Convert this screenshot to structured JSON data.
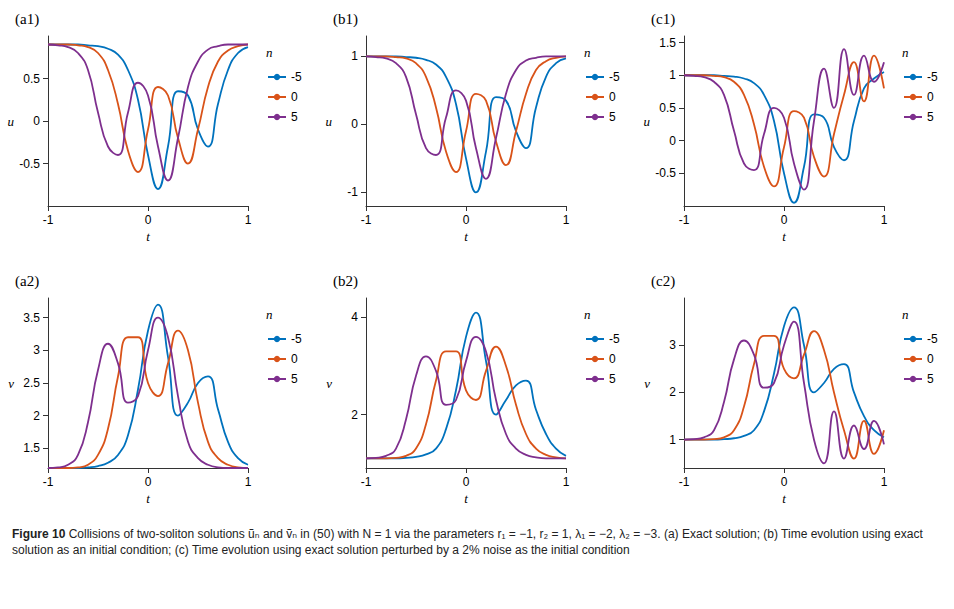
{
  "chart_data": [
    {
      "type": "line",
      "title": "(a1)",
      "xlabel": "t",
      "ylabel": "u",
      "legend_title": "n",
      "legend": "right",
      "x": [
        -1,
        -0.9,
        -0.8,
        -0.7,
        -0.6,
        -0.5,
        -0.4,
        -0.3,
        -0.2,
        -0.1,
        0,
        0.1,
        0.2,
        0.3,
        0.4,
        0.5,
        0.6,
        0.7,
        0.8,
        0.9,
        1
      ],
      "xlim": [
        -1,
        1
      ],
      "xticks": [
        -1,
        0,
        1
      ],
      "ylim": [
        -1,
        1
      ],
      "yticks": [
        -0.5,
        0,
        0.5
      ],
      "grid": false,
      "series": [
        {
          "name": "-5",
          "color": "#0072bd",
          "values": [
            0.9,
            0.9,
            0.9,
            0.9,
            0.89,
            0.88,
            0.85,
            0.78,
            0.6,
            0.25,
            -0.4,
            -0.8,
            -0.3,
            0.35,
            0.3,
            -0.1,
            -0.3,
            0.2,
            0.6,
            0.8,
            0.87
          ]
        },
        {
          "name": "0",
          "color": "#d95319",
          "values": [
            0.9,
            0.9,
            0.9,
            0.89,
            0.87,
            0.8,
            0.6,
            0.2,
            -0.35,
            -0.6,
            -0.1,
            0.4,
            0.3,
            -0.2,
            -0.5,
            -0.1,
            0.4,
            0.7,
            0.83,
            0.88,
            0.9
          ]
        },
        {
          "name": "5",
          "color": "#7e2f8e",
          "values": [
            0.9,
            0.89,
            0.87,
            0.8,
            0.6,
            0.1,
            -0.3,
            -0.4,
            0.1,
            0.45,
            0.3,
            -0.3,
            -0.7,
            -0.2,
            0.4,
            0.7,
            0.84,
            0.88,
            0.9,
            0.9,
            0.9
          ]
        }
      ]
    },
    {
      "type": "line",
      "title": "(b1)",
      "xlabel": "t",
      "ylabel": "u",
      "legend_title": "n",
      "legend": "right",
      "x": [
        -1,
        -0.9,
        -0.8,
        -0.7,
        -0.6,
        -0.5,
        -0.4,
        -0.3,
        -0.2,
        -0.1,
        0,
        0.1,
        0.2,
        0.3,
        0.4,
        0.5,
        0.6,
        0.7,
        0.8,
        0.9,
        1
      ],
      "xlim": [
        -1,
        1
      ],
      "xticks": [
        -1,
        0,
        1
      ],
      "ylim": [
        -1.2,
        1.3
      ],
      "yticks": [
        -1,
        0,
        1
      ],
      "grid": false,
      "series": [
        {
          "name": "-5",
          "color": "#0072bd",
          "values": [
            1,
            1,
            1,
            1,
            0.99,
            0.98,
            0.95,
            0.88,
            0.7,
            0.3,
            -0.5,
            -1.0,
            -0.4,
            0.4,
            0.35,
            -0.1,
            -0.35,
            0.25,
            0.7,
            0.9,
            0.97
          ]
        },
        {
          "name": "0",
          "color": "#d95319",
          "values": [
            1,
            1,
            1,
            0.99,
            0.97,
            0.9,
            0.7,
            0.25,
            -0.4,
            -0.7,
            -0.1,
            0.45,
            0.35,
            -0.25,
            -0.6,
            -0.1,
            0.45,
            0.8,
            0.93,
            0.98,
            1
          ]
        },
        {
          "name": "5",
          "color": "#7e2f8e",
          "values": [
            1,
            0.99,
            0.97,
            0.9,
            0.7,
            0.15,
            -0.35,
            -0.45,
            0.1,
            0.5,
            0.35,
            -0.35,
            -0.8,
            -0.2,
            0.45,
            0.8,
            0.94,
            0.98,
            1,
            1,
            1
          ]
        }
      ]
    },
    {
      "type": "line",
      "title": "(c1)",
      "xlabel": "t",
      "ylabel": "u",
      "legend_title": "n",
      "legend": "right",
      "x": [
        -1,
        -0.9,
        -0.8,
        -0.7,
        -0.6,
        -0.5,
        -0.4,
        -0.3,
        -0.2,
        -0.1,
        0,
        0.1,
        0.2,
        0.3,
        0.4,
        0.5,
        0.6,
        0.7,
        0.8,
        0.9,
        1
      ],
      "xlim": [
        -1,
        1
      ],
      "xticks": [
        -1,
        0,
        1
      ],
      "ylim": [
        -1,
        1.6
      ],
      "yticks": [
        -0.5,
        0,
        0.5,
        1,
        1.5
      ],
      "grid": false,
      "series": [
        {
          "name": "-5",
          "color": "#0072bd",
          "values": [
            1,
            1,
            1,
            1,
            0.99,
            0.98,
            0.95,
            0.88,
            0.7,
            0.3,
            -0.5,
            -0.95,
            -0.4,
            0.4,
            0.35,
            -0.1,
            -0.3,
            0.3,
            0.8,
            0.95,
            1.05
          ]
        },
        {
          "name": "0",
          "color": "#d95319",
          "values": [
            1,
            1,
            1,
            0.99,
            0.97,
            0.9,
            0.7,
            0.25,
            -0.4,
            -0.7,
            -0.1,
            0.45,
            0.35,
            -0.25,
            -0.55,
            0.1,
            0.7,
            1.2,
            0.6,
            1.3,
            0.8
          ]
        },
        {
          "name": "5",
          "color": "#7e2f8e",
          "values": [
            1,
            0.99,
            0.97,
            0.9,
            0.7,
            0.15,
            -0.35,
            -0.45,
            0.1,
            0.5,
            0.35,
            -0.35,
            -0.75,
            0.3,
            1.1,
            0.5,
            1.4,
            0.7,
            1.3,
            0.9,
            1.2
          ]
        }
      ]
    },
    {
      "type": "line",
      "title": "(a2)",
      "xlabel": "t",
      "ylabel": "v",
      "legend_title": "n",
      "legend": "right",
      "x": [
        -1,
        -0.9,
        -0.8,
        -0.7,
        -0.6,
        -0.5,
        -0.4,
        -0.3,
        -0.2,
        -0.1,
        0,
        0.1,
        0.2,
        0.3,
        0.4,
        0.5,
        0.6,
        0.7,
        0.8,
        0.9,
        1
      ],
      "xlim": [
        -1,
        1
      ],
      "xticks": [
        -1,
        0,
        1
      ],
      "ylim": [
        1.2,
        3.8
      ],
      "yticks": [
        1.5,
        2,
        2.5,
        3,
        3.5
      ],
      "grid": false,
      "series": [
        {
          "name": "-5",
          "color": "#0072bd",
          "values": [
            1.2,
            1.2,
            1.2,
            1.2,
            1.21,
            1.23,
            1.28,
            1.4,
            1.7,
            2.4,
            3.3,
            3.7,
            2.9,
            2.0,
            2.2,
            2.5,
            2.6,
            2.1,
            1.6,
            1.35,
            1.25
          ]
        },
        {
          "name": "0",
          "color": "#d95319",
          "values": [
            1.2,
            1.2,
            1.2,
            1.21,
            1.25,
            1.4,
            1.8,
            2.6,
            3.2,
            3.2,
            2.5,
            2.3,
            2.8,
            3.3,
            3.0,
            2.2,
            1.6,
            1.35,
            1.25,
            1.21,
            1.2
          ]
        },
        {
          "name": "5",
          "color": "#7e2f8e",
          "values": [
            1.2,
            1.21,
            1.25,
            1.4,
            1.9,
            2.7,
            3.1,
            2.8,
            2.2,
            2.3,
            3.0,
            3.5,
            3.2,
            2.3,
            1.6,
            1.35,
            1.25,
            1.21,
            1.2,
            1.2,
            1.2
          ]
        }
      ]
    },
    {
      "type": "line",
      "title": "(b2)",
      "xlabel": "t",
      "ylabel": "v",
      "legend_title": "n",
      "legend": "right",
      "x": [
        -1,
        -0.9,
        -0.8,
        -0.7,
        -0.6,
        -0.5,
        -0.4,
        -0.3,
        -0.2,
        -0.1,
        0,
        0.1,
        0.2,
        0.3,
        0.4,
        0.5,
        0.6,
        0.7,
        0.8,
        0.9,
        1
      ],
      "xlim": [
        -1,
        1
      ],
      "xticks": [
        -1,
        0,
        1
      ],
      "ylim": [
        0.9,
        4.4
      ],
      "yticks": [
        2,
        4
      ],
      "grid": false,
      "series": [
        {
          "name": "-5",
          "color": "#0072bd",
          "values": [
            1.1,
            1.1,
            1.1,
            1.1,
            1.11,
            1.13,
            1.18,
            1.3,
            1.7,
            2.5,
            3.6,
            4.1,
            3.1,
            2.0,
            2.3,
            2.6,
            2.7,
            2.1,
            1.6,
            1.3,
            1.15
          ]
        },
        {
          "name": "0",
          "color": "#d95319",
          "values": [
            1.1,
            1.1,
            1.1,
            1.11,
            1.15,
            1.3,
            1.8,
            2.7,
            3.3,
            3.3,
            2.5,
            2.3,
            2.9,
            3.4,
            3.0,
            2.2,
            1.6,
            1.3,
            1.17,
            1.12,
            1.1
          ]
        },
        {
          "name": "5",
          "color": "#7e2f8e",
          "values": [
            1.1,
            1.11,
            1.15,
            1.3,
            1.9,
            2.8,
            3.2,
            2.9,
            2.2,
            2.3,
            3.1,
            3.6,
            3.3,
            2.3,
            1.6,
            1.3,
            1.17,
            1.12,
            1.1,
            1.1,
            1.1
          ]
        }
      ]
    },
    {
      "type": "line",
      "title": "(c2)",
      "xlabel": "t",
      "ylabel": "v",
      "legend_title": "n",
      "legend": "right",
      "x": [
        -1,
        -0.9,
        -0.8,
        -0.7,
        -0.6,
        -0.5,
        -0.4,
        -0.3,
        -0.2,
        -0.1,
        0,
        0.1,
        0.2,
        0.3,
        0.4,
        0.5,
        0.6,
        0.7,
        0.8,
        0.9,
        1
      ],
      "xlim": [
        -1,
        1
      ],
      "xticks": [
        -1,
        0,
        1
      ],
      "ylim": [
        0.4,
        4
      ],
      "yticks": [
        1,
        2,
        3
      ],
      "grid": false,
      "series": [
        {
          "name": "-5",
          "color": "#0072bd",
          "values": [
            1,
            1,
            1,
            1,
            1.01,
            1.03,
            1.08,
            1.2,
            1.6,
            2.4,
            3.4,
            3.8,
            3.0,
            2.0,
            2.2,
            2.5,
            2.6,
            2.0,
            1.5,
            1.2,
            1.05
          ]
        },
        {
          "name": "0",
          "color": "#d95319",
          "values": [
            1,
            1,
            1,
            1.01,
            1.05,
            1.2,
            1.7,
            2.6,
            3.2,
            3.2,
            2.5,
            2.3,
            2.8,
            3.3,
            2.9,
            2.0,
            1.2,
            0.6,
            1.4,
            0.7,
            1.2
          ]
        },
        {
          "name": "5",
          "color": "#7e2f8e",
          "values": [
            1,
            1.01,
            1.05,
            1.2,
            1.8,
            2.7,
            3.1,
            2.8,
            2.1,
            2.2,
            3.0,
            3.5,
            2.2,
            1.0,
            0.5,
            1.6,
            0.6,
            1.3,
            0.8,
            1.4,
            0.9
          ]
        }
      ]
    }
  ],
  "caption_label": "Figure 10",
  "caption": "Collisions of two-soliton solutions ũₙ and ṽₙ in (50) with N = 1 via the parameters r₁ = −1, r₂ = 1, λ₁ = −2, λ₂ = −3. (a) Exact solution; (b) Time evolution using exact solution as an initial condition; (c) Time evolution using exact solution perturbed by a 2% noise as the initial condition"
}
